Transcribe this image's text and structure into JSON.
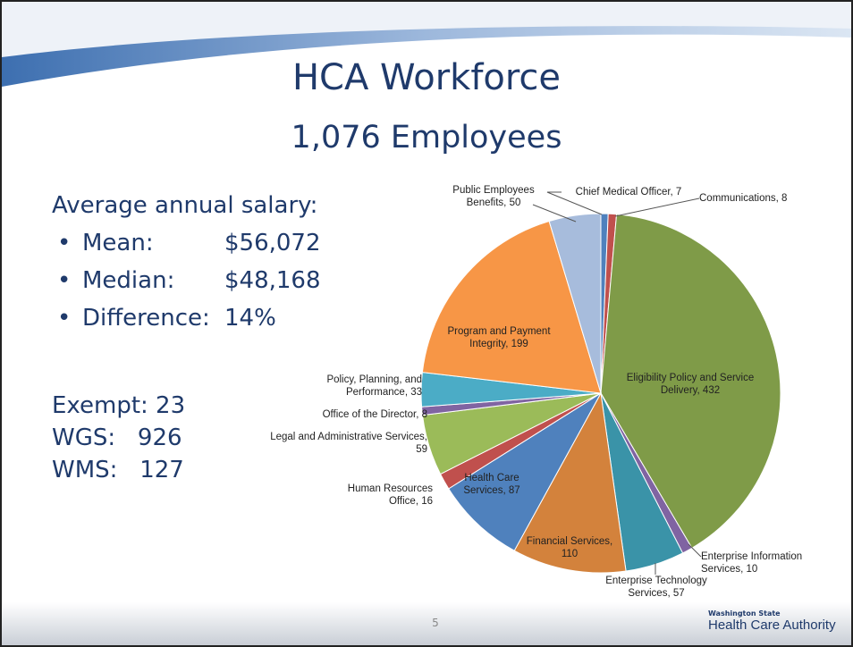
{
  "slide": {
    "title": "HCA Workforce",
    "subtitle": "1,076 Employees",
    "salary_heading": "Average annual salary:",
    "salary_items": [
      {
        "label": "Mean:",
        "value": "$56,072"
      },
      {
        "label": "Median:",
        "value": "$48,168"
      },
      {
        "label": "Difference:",
        "value": "14%"
      }
    ],
    "counts": [
      "Exempt: 23",
      "WGS:   926",
      "WMS:   127"
    ],
    "page_number": "5",
    "logo_small": "Washington State",
    "logo_large": "Health Care Authority"
  },
  "chart_data": {
    "type": "pie",
    "categories": [
      "Chief Medical Officer, 7",
      "Communications, 8",
      "Eligibility Policy and Service Delivery, 432",
      "Enterprise Information Services, 10",
      "Enterprise Technology Services, 57",
      "Financial Services, 110",
      "Health Care Services, 87",
      "Human Resources Office, 16",
      "Legal and Administrative Services, 59",
      "Office of the Director, 8",
      "Policy, Planning, and Performance, 33",
      "Program and Payment Integrity, 199",
      "Public Employees Benefits, 50"
    ],
    "values": [
      7,
      8,
      432,
      10,
      57,
      110,
      87,
      16,
      59,
      8,
      33,
      199,
      50
    ],
    "colors": [
      "#4f81bd",
      "#c0504d",
      "#7f9b48",
      "#8064a2",
      "#3a93a8",
      "#d3823c",
      "#4f81bd",
      "#c0504d",
      "#9bbb59",
      "#8064a2",
      "#4bacc6",
      "#f79646",
      "#a7bcdc"
    ]
  }
}
